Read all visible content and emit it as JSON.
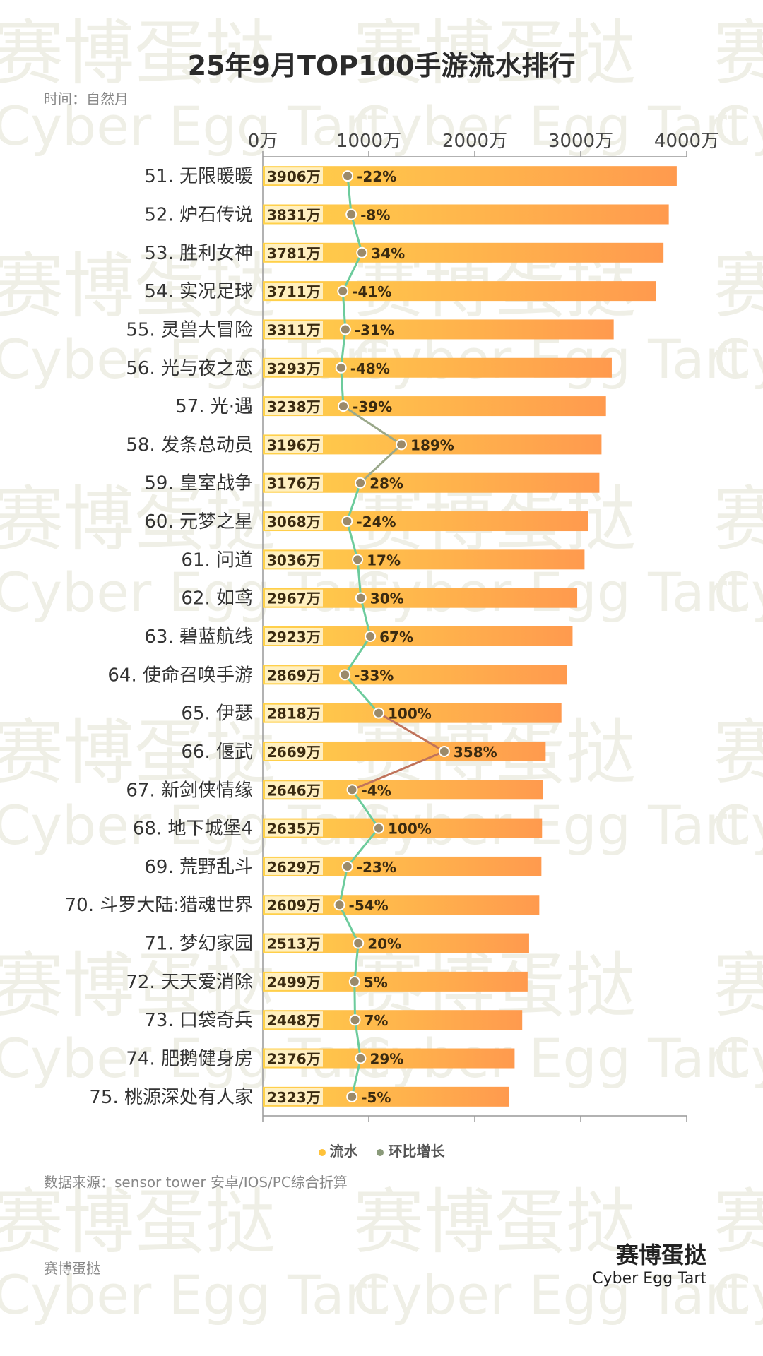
{
  "title": "25年9月TOP100手游流水排行",
  "subtitle": "时间：自然月",
  "watermark": {
    "cn": "赛博蛋挞",
    "en": "Cyber Egg Tart"
  },
  "legend": {
    "revenue": "流水",
    "growth": "环比增长"
  },
  "source": "数据来源：sensor tower 安卓/IOS/PC综合折算",
  "brand": {
    "left": "赛博蛋挞",
    "cn": "赛博蛋挞",
    "en": "Cyber Egg Tart"
  },
  "colors": {
    "bar_start": "#ffd24a",
    "bar_end": "#ff9a4e",
    "line": "#6ccb9c",
    "line_up": "#c0735b",
    "marker": "#9b8a6a",
    "legend_revenue": "#ffc23a",
    "legend_growth": "#8a9a7a"
  },
  "chart_data": {
    "type": "bar",
    "orientation": "horizontal",
    "title": "25年9月TOP100手游流水排行",
    "xlim": [
      0,
      4000
    ],
    "xticks": [
      "0万",
      "1000万",
      "2000万",
      "3000万",
      "4000万"
    ],
    "categories": [
      "51. 无限暖暖",
      "52. 炉石传说",
      "53. 胜利女神",
      "54. 实况足球",
      "55. 灵兽大冒险",
      "56. 光与夜之恋",
      "57. 光·遇",
      "58. 发条总动员",
      "59. 皇室战争",
      "60. 元梦之星",
      "61. 问道",
      "62. 如鸢",
      "63. 碧蓝航线",
      "64. 使命召唤手游",
      "65. 伊瑟",
      "66. 偃武",
      "67. 新剑侠情缘",
      "68. 地下城堡4",
      "69. 荒野乱斗",
      "70. 斗罗大陆:猎魂世界",
      "71. 梦幻家园",
      "72. 天天爱消除",
      "73. 口袋奇兵",
      "74. 肥鹅健身房",
      "75. 桃源深处有人家"
    ],
    "series": [
      {
        "name": "流水",
        "unit": "万",
        "values": [
          3906,
          3831,
          3781,
          3711,
          3311,
          3293,
          3238,
          3196,
          3176,
          3068,
          3036,
          2967,
          2923,
          2869,
          2818,
          2669,
          2646,
          2635,
          2629,
          2609,
          2513,
          2499,
          2448,
          2376,
          2323
        ],
        "labels": [
          "3906万",
          "3831万",
          "3781万",
          "3711万",
          "3311万",
          "3293万",
          "3238万",
          "3196万",
          "3176万",
          "3068万",
          "3036万",
          "2967万",
          "2923万",
          "2869万",
          "2818万",
          "2669万",
          "2646万",
          "2635万",
          "2629万",
          "2609万",
          "2513万",
          "2499万",
          "2448万",
          "2376万",
          "2323万"
        ]
      },
      {
        "name": "环比增长",
        "unit": "%",
        "values": [
          -22,
          -8,
          34,
          -41,
          -31,
          -48,
          -39,
          189,
          28,
          -24,
          17,
          30,
          67,
          -33,
          100,
          358,
          -4,
          100,
          -23,
          -54,
          20,
          5,
          7,
          29,
          -5
        ],
        "labels": [
          "-22%",
          "-8%",
          "34%",
          "-41%",
          "-31%",
          "-48%",
          "-39%",
          "189%",
          "28%",
          "-24%",
          "17%",
          "30%",
          "67%",
          "-33%",
          "100%",
          "358%",
          "-4%",
          "100%",
          "-23%",
          "-54%",
          "20%",
          "5%",
          "7%",
          "29%",
          "-5%"
        ]
      }
    ],
    "grid": false,
    "legend_position": "bottom"
  }
}
